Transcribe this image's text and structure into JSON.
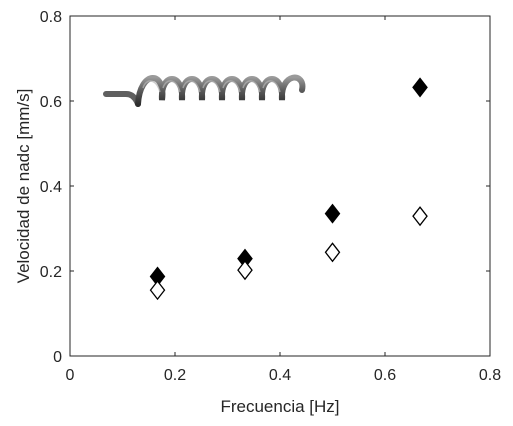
{
  "chart_data": {
    "type": "scatter",
    "title": "",
    "xlabel": "Frecuencia [Hz]",
    "ylabel": "Velocidad de nadc [mm/s]",
    "xlim": [
      0,
      0.8
    ],
    "ylim": [
      0,
      0.8
    ],
    "xticks": [
      "0",
      "0.2",
      "0.4",
      "0.6",
      "0.8"
    ],
    "yticks": [
      "0",
      "0.2",
      "0.4",
      "0.6",
      "0.8"
    ],
    "grid": false,
    "legend": "none",
    "series": [
      {
        "marker": "diamond-filled",
        "color": "#000000",
        "x": [
          0.1667,
          0.3333,
          0.5,
          0.6667
        ],
        "y": [
          0.187,
          0.229,
          0.335,
          0.632
        ]
      },
      {
        "marker": "diamond-open",
        "color": "#000000",
        "x": [
          0.1667,
          0.3333,
          0.5,
          0.6667
        ],
        "y": [
          0.155,
          0.202,
          0.244,
          0.329
        ]
      }
    ],
    "inset_image": "helical-swimmer-icon"
  }
}
